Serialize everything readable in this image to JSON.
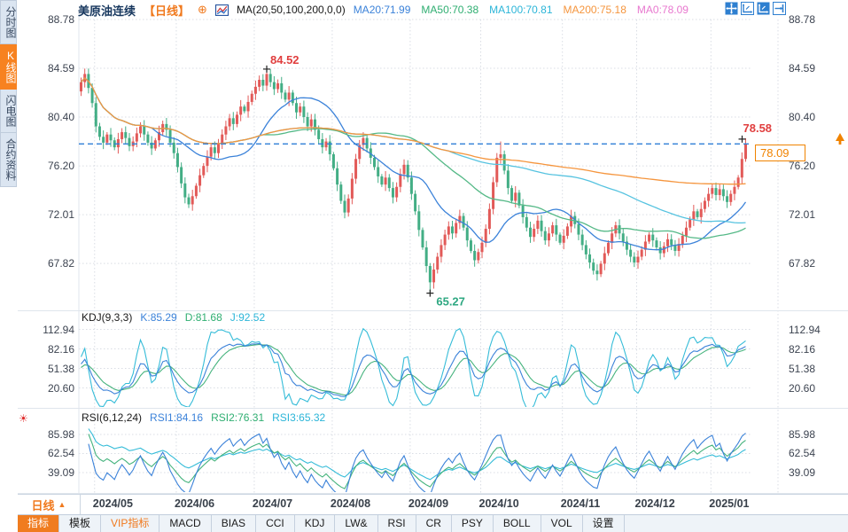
{
  "header": {
    "title": "美原油连续",
    "period_tag": "【日线】",
    "ma_formula": "MA(20,50,100,200,0,0)",
    "ma_values": [
      {
        "label": "MA20:71.99",
        "color": "#3b82d9"
      },
      {
        "label": "MA50:70.38",
        "color": "#2fae71"
      },
      {
        "label": "MA100:70.81",
        "color": "#2bb5d8"
      },
      {
        "label": "MA200:75.18",
        "color": "#f5953d"
      },
      {
        "label": "MA0:78.09",
        "color": "#e878cf"
      }
    ],
    "toolbar_icons": [
      "pan-crosshair-icon",
      "compress-x-axis-icon",
      "compress-y-axis-icon",
      "go-to-latest-icon"
    ]
  },
  "sidebar": {
    "items": [
      {
        "label": "分时图",
        "active": false
      },
      {
        "label": "K线图",
        "active": true
      },
      {
        "label": "闪电图",
        "active": false
      },
      {
        "label": "合约资料",
        "active": false
      }
    ]
  },
  "bottom": {
    "period_label": "日线",
    "period_arrow": "▲",
    "tabs": [
      {
        "label": "指标",
        "state": "active"
      },
      {
        "label": "模板",
        "state": "normal"
      },
      {
        "label": "VIP指标",
        "state": "accent"
      },
      {
        "label": "MACD",
        "state": "normal"
      },
      {
        "label": "BIAS",
        "state": "normal"
      },
      {
        "label": "CCI",
        "state": "normal"
      },
      {
        "label": "KDJ",
        "state": "normal"
      },
      {
        "label": "LW&",
        "state": "normal"
      },
      {
        "label": "RSI",
        "state": "normal"
      },
      {
        "label": "CR",
        "state": "normal"
      },
      {
        "label": "PSY",
        "state": "normal"
      },
      {
        "label": "BOLL",
        "state": "normal"
      },
      {
        "label": "VOL",
        "state": "normal"
      },
      {
        "label": "设置",
        "state": "normal"
      }
    ]
  },
  "chart_data": {
    "type": "candlestick",
    "symbol": "美原油连续",
    "period": "日线",
    "x_labels": [
      "2024/05",
      "2024/06",
      "2024/07",
      "2024/08",
      "2024/09",
      "2024/10",
      "2024/11",
      "2024/12",
      "2025/01"
    ],
    "month_start_indices": [
      4,
      26,
      47,
      68,
      89,
      108,
      130,
      150,
      170
    ],
    "main_axis": {
      "ticks": [
        "88.78",
        "84.59",
        "80.40",
        "76.20",
        "72.01",
        "67.82"
      ],
      "tick_values": [
        88.78,
        84.59,
        80.4,
        76.2,
        72.01,
        67.82
      ]
    },
    "first_open": 82.6,
    "closes": [
      83.4,
      84.1,
      82.9,
      81.6,
      79.6,
      78.7,
      78.2,
      78.9,
      78.4,
      77.8,
      78.5,
      79.1,
      78.6,
      77.9,
      78.3,
      79.0,
      79.6,
      78.9,
      78.2,
      77.7,
      78.4,
      79.1,
      79.8,
      79.3,
      78.2,
      77.3,
      76.1,
      74.7,
      73.5,
      72.9,
      73.6,
      74.5,
      75.4,
      76.2,
      77.0,
      77.8,
      77.3,
      78.1,
      78.9,
      79.6,
      80.3,
      79.8,
      80.6,
      81.3,
      80.9,
      81.7,
      82.4,
      83.0,
      83.6,
      83.1,
      84.1,
      83.4,
      82.8,
      83.3,
      82.5,
      81.9,
      82.5,
      81.6,
      80.8,
      81.3,
      80.4,
      79.6,
      80.2,
      79.3,
      78.5,
      77.8,
      78.3,
      77.2,
      76.0,
      74.6,
      73.2,
      72.2,
      73.4,
      75.1,
      76.8,
      78.0,
      78.6,
      77.7,
      76.9,
      76.1,
      75.3,
      74.6,
      75.2,
      74.3,
      73.5,
      74.4,
      75.5,
      76.3,
      75.2,
      73.8,
      72.3,
      70.7,
      69.2,
      67.6,
      66.2,
      67.3,
      68.4,
      69.4,
      70.3,
      71.0,
      70.4,
      71.3,
      71.9,
      70.9,
      69.8,
      68.9,
      68.1,
      68.8,
      69.6,
      70.8,
      72.5,
      74.8,
      76.9,
      77.2,
      75.8,
      74.3,
      73.2,
      73.9,
      72.8,
      71.8,
      70.9,
      70.1,
      70.8,
      71.5,
      70.6,
      69.8,
      70.4,
      71.1,
      70.3,
      69.6,
      70.2,
      71.0,
      71.9,
      71.2,
      70.3,
      69.4,
      68.6,
      67.9,
      67.2,
      66.9,
      67.8,
      68.7,
      69.6,
      70.4,
      71.1,
      70.4,
      69.7,
      69.0,
      68.4,
      67.9,
      68.4,
      69.0,
      69.7,
      70.3,
      69.8,
      69.2,
      68.7,
      69.3,
      69.9,
      69.4,
      68.9,
      69.5,
      70.2,
      70.9,
      71.6,
      72.3,
      71.8,
      72.5,
      73.2,
      73.8,
      74.3,
      73.7,
      74.2,
      73.6,
      73.1,
      73.8,
      74.4,
      75.2,
      76.8,
      78.09
    ],
    "wick_overrides": {
      "50": [
        84.52,
        null
      ],
      "71": [
        null,
        71.7
      ],
      "94": [
        null,
        65.27
      ],
      "113": [
        78.3,
        null
      ],
      "179": [
        78.58,
        null
      ]
    },
    "annotations": {
      "high": {
        "index": 50,
        "label": "84.52",
        "value": 84.52
      },
      "low": {
        "index": 94,
        "label": "65.27",
        "value": 65.27
      },
      "last": {
        "index": 179,
        "label": "78.58",
        "value": 78.58
      }
    },
    "current_price": {
      "value": 78.09,
      "label": "78.09"
    },
    "ma_periods": [
      20,
      50,
      100,
      200
    ],
    "kdj": {
      "formula": "KDJ(9,3,3)",
      "value_labels": [
        {
          "label": "K:85.29",
          "color": "#3b82d9"
        },
        {
          "label": "D:81.68",
          "color": "#2fae71"
        },
        {
          "label": "J:92.52",
          "color": "#2bb5d8"
        }
      ],
      "ticks": [
        "112.94",
        "82.16",
        "51.38",
        "20.60"
      ],
      "tick_values": [
        112.94,
        82.16,
        51.38,
        20.6
      ]
    },
    "rsi": {
      "formula": "RSI(6,12,24)",
      "value_labels": [
        {
          "label": "RSI1:84.16",
          "color": "#3b82d9"
        },
        {
          "label": "RSI2:76.31",
          "color": "#2fae71"
        },
        {
          "label": "RSI3:65.32",
          "color": "#2bb5d8"
        }
      ],
      "ticks": [
        "85.98",
        "62.54",
        "39.09"
      ],
      "tick_values": [
        85.98,
        62.54,
        39.09
      ]
    },
    "colors": {
      "up": "#e25a58",
      "down": "#43ae85",
      "ma20": "#3b82d9",
      "ma50": "#55b987",
      "ma100": "#56c3e0",
      "ma200": "#f5953d",
      "k": "#3b82d9",
      "d": "#45b37d",
      "j": "#35bcd8",
      "current_line": "#2f7fd6",
      "high_label": "#e03e3e",
      "low_label": "#2fa882",
      "grid": "#d9dde4",
      "accent_orange": "#f08300"
    }
  }
}
